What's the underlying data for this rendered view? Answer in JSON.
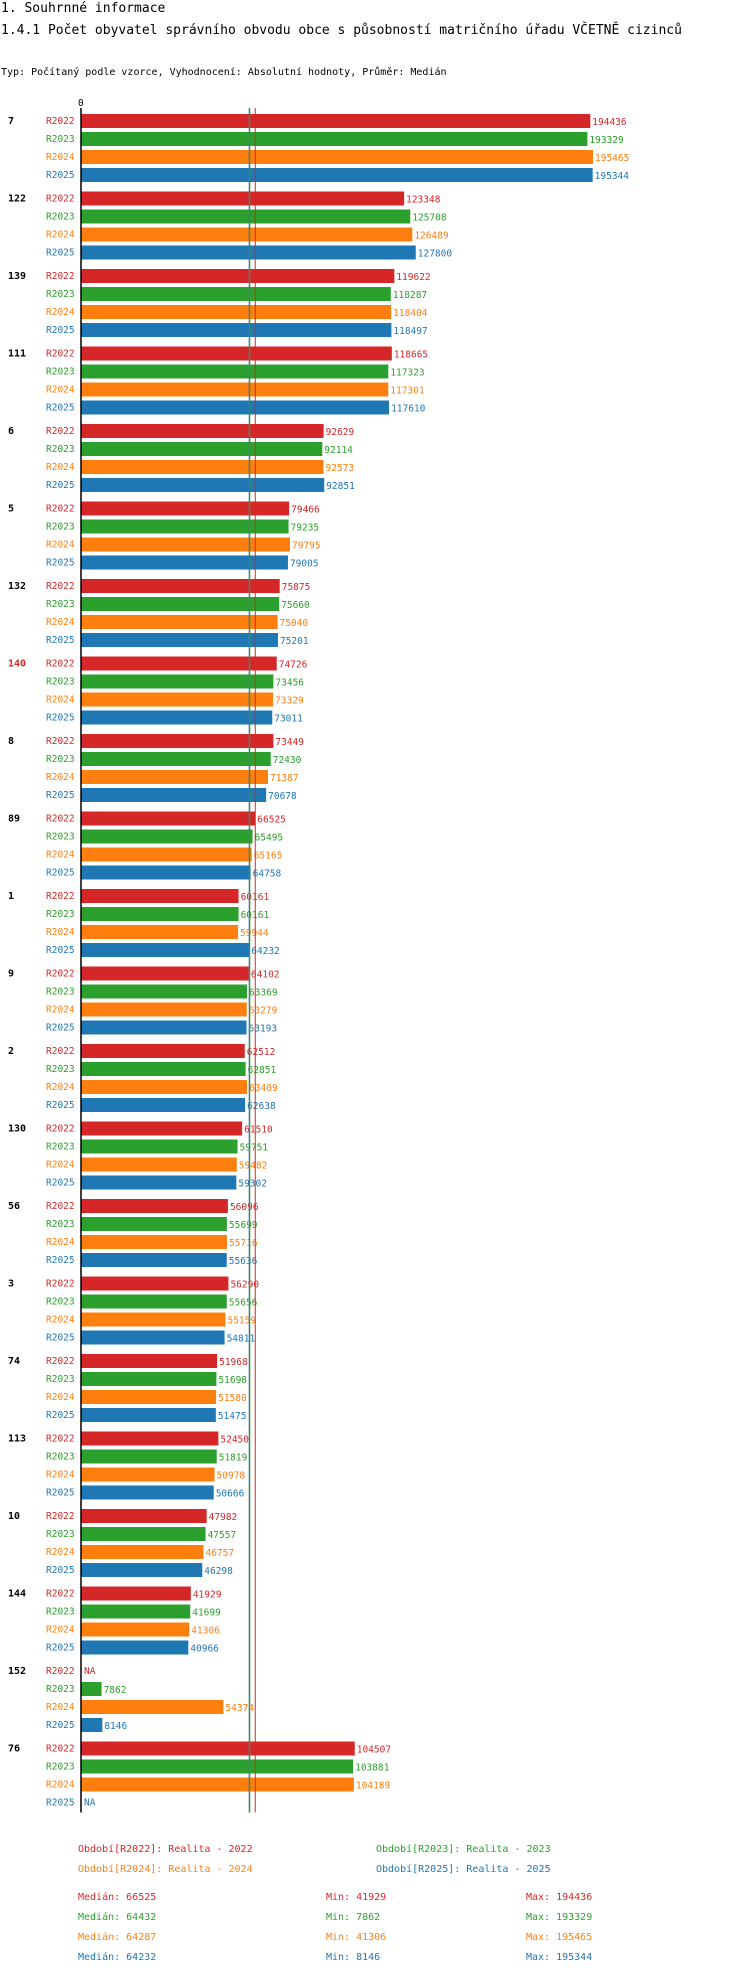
{
  "header": {
    "section": "1. Souhrnné informace",
    "title": "1.4.1 Počet obyvatel správního obvodu obce s působností matričního úřadu VČETNĚ cizinců",
    "subtitle": "Typ: Počítaný podle vzorce, Vyhodnocení: Absolutní hodnoty, Průměr: Medián"
  },
  "chart_data": {
    "type": "bar",
    "orientation": "horizontal",
    "title": "1.4.1 Počet obyvatel správního obvodu obce s působností matričního úřadu VČETNĚ cizinců",
    "x_axis_zero_label": "0",
    "xlim": [
      0,
      195465
    ],
    "series_names": [
      "R2022",
      "R2023",
      "R2024",
      "R2025"
    ],
    "colors": [
      "#d62728",
      "#2ca02c",
      "#ff7f0e",
      "#1f77b4"
    ],
    "highlight_group": "140",
    "highlight_color": "#d62728",
    "groups": [
      {
        "label": "7",
        "values": [
          194436,
          193329,
          195465,
          195344
        ]
      },
      {
        "label": "122",
        "values": [
          123348,
          125708,
          126489,
          127800
        ]
      },
      {
        "label": "139",
        "values": [
          119622,
          118287,
          118404,
          118497
        ]
      },
      {
        "label": "111",
        "values": [
          118665,
          117323,
          117301,
          117610
        ]
      },
      {
        "label": "6",
        "values": [
          92629,
          92114,
          92573,
          92851
        ]
      },
      {
        "label": "5",
        "values": [
          79466,
          79235,
          79795,
          79005
        ]
      },
      {
        "label": "132",
        "values": [
          75875,
          75660,
          75040,
          75201
        ]
      },
      {
        "label": "140",
        "values": [
          74726,
          73456,
          73329,
          73011
        ]
      },
      {
        "label": "8",
        "values": [
          73449,
          72430,
          71387,
          70678
        ]
      },
      {
        "label": "89",
        "values": [
          66525,
          65495,
          65165,
          64758
        ]
      },
      {
        "label": "1",
        "values": [
          60161,
          60161,
          59944,
          64232
        ]
      },
      {
        "label": "9",
        "values": [
          64102,
          63369,
          63279,
          63193
        ]
      },
      {
        "label": "2",
        "values": [
          62512,
          62851,
          63409,
          62638
        ]
      },
      {
        "label": "130",
        "values": [
          61510,
          59751,
          59482,
          59302
        ]
      },
      {
        "label": "56",
        "values": [
          56096,
          55699,
          55716,
          55636
        ]
      },
      {
        "label": "3",
        "values": [
          56290,
          55656,
          55159,
          54811
        ]
      },
      {
        "label": "74",
        "values": [
          51968,
          51698,
          51580,
          51475
        ]
      },
      {
        "label": "113",
        "values": [
          52450,
          51819,
          50978,
          50666
        ]
      },
      {
        "label": "10",
        "values": [
          47982,
          47557,
          46757,
          46298
        ]
      },
      {
        "label": "144",
        "values": [
          41929,
          41699,
          41306,
          40966
        ]
      },
      {
        "label": "152",
        "values": [
          null,
          7862,
          54374,
          8146
        ]
      },
      {
        "label": "76",
        "values": [
          104507,
          103881,
          104189,
          null
        ]
      }
    ],
    "missing_label": "NA",
    "median_lines": [
      {
        "series": "R2022",
        "value": 66525
      },
      {
        "series": "R2023",
        "value": 64432
      },
      {
        "series": "R2024",
        "value": 64287
      },
      {
        "series": "R2025",
        "value": 64232
      }
    ]
  },
  "legend": {
    "periods": [
      "Období[R2022]: Realita - 2022",
      "Období[R2023]: Realita - 2023",
      "Období[R2024]: Realita - 2024",
      "Období[R2025]: Realita - 2025"
    ],
    "stats": [
      {
        "median": "Medián: 66525",
        "min": "Min: 41929",
        "max": "Max: 194436"
      },
      {
        "median": "Medián: 64432",
        "min": "Min: 7862",
        "max": "Max: 193329"
      },
      {
        "median": "Medián: 64287",
        "min": "Min: 41306",
        "max": "Max: 195465"
      },
      {
        "median": "Medián: 64232",
        "min": "Min: 8146",
        "max": "Max: 195344"
      }
    ]
  }
}
